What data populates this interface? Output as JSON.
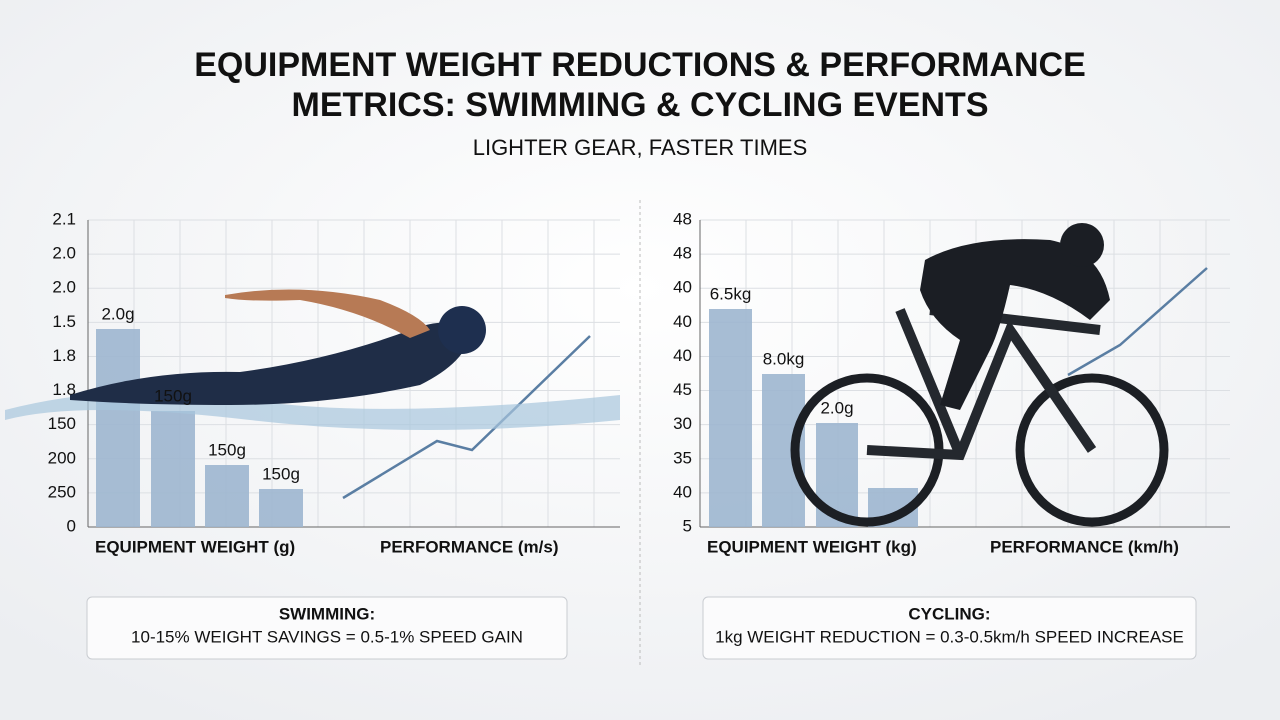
{
  "header": {
    "title_lines": [
      "EQUIPMENT WEIGHT REDUCTIONS & PERFORMANCE",
      "METRICS: SWIMMING & CYCLING EVENTS"
    ],
    "subtitle": "LIGHTER GEAR, FASTER TIMES"
  },
  "panels": [
    {
      "y_labels": [
        "2.1",
        "2.0",
        "2.0",
        "1.5",
        "1.8",
        "1.8",
        "150",
        "200",
        "250",
        "0"
      ],
      "bar_labels": [
        "2.0g",
        "150g",
        "150g",
        "150g"
      ],
      "x_label_left": "EQUIPMENT WEIGHT (g)",
      "x_label_right": "PERFORMANCE (m/s)",
      "note_title": "SWIMMING:",
      "note_text": "10-15% WEIGHT SAVINGS = 0.5-1% SPEED GAIN"
    },
    {
      "y_labels": [
        "48",
        "48",
        "40",
        "40",
        "40",
        "45",
        "30",
        "35",
        "40",
        "5"
      ],
      "bar_labels": [
        "6.5kg",
        "8.0kg",
        "2.0g"
      ],
      "x_label_left": "EQUIPMENT WEIGHT (kg)",
      "x_label_right": "PERFORMANCE (km/h)",
      "note_title": "CYCLING:",
      "note_text": "1kg WEIGHT REDUCTION = 0.3-0.5km/h SPEED INCREASE"
    }
  ]
}
